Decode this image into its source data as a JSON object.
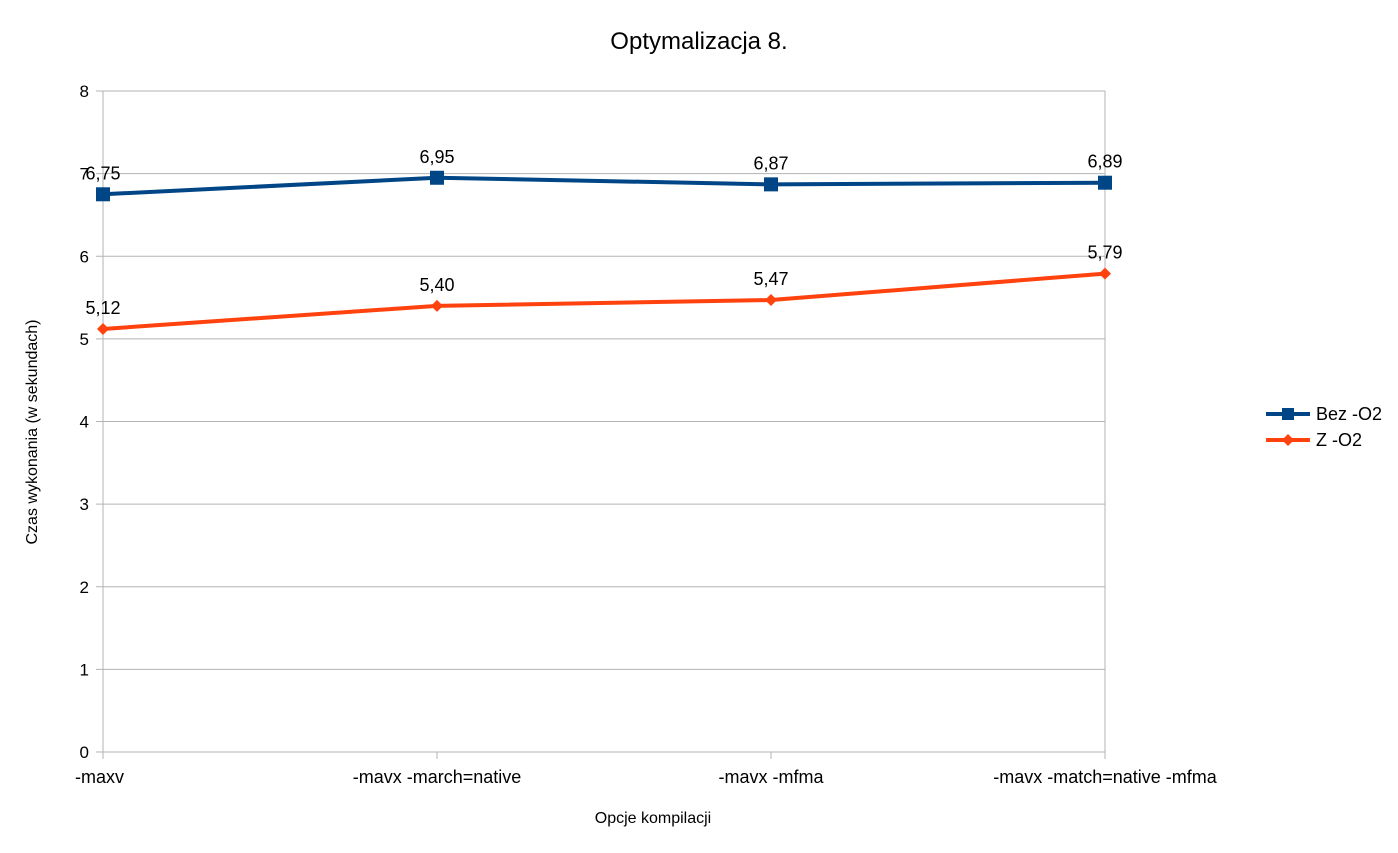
{
  "chart_data": {
    "type": "line",
    "title": "Optymalizacja 8.",
    "xlabel": "Opcje kompilacji",
    "ylabel": "Czas wykonania (w sekundach)",
    "categories": [
      "-maxv",
      "-mavx -march=native",
      "-mavx -mfma",
      "-mavx -match=native -mfma"
    ],
    "ylim": [
      0,
      8
    ],
    "yticks": [
      0,
      1,
      2,
      3,
      4,
      5,
      6,
      7,
      8
    ],
    "grid": true,
    "legend_position": "right",
    "series": [
      {
        "name": "Bez -O2",
        "values": [
          6.75,
          6.95,
          6.87,
          6.89
        ],
        "labels": [
          "6,75",
          "6,95",
          "6,87",
          "6,89"
        ],
        "color": "#004586",
        "marker": "square"
      },
      {
        "name": "Z -O2",
        "values": [
          5.12,
          5.4,
          5.47,
          5.79
        ],
        "labels": [
          "5,12",
          "5,40",
          "5,47",
          "5,79"
        ],
        "color": "#ff420e",
        "marker": "diamond"
      }
    ]
  }
}
